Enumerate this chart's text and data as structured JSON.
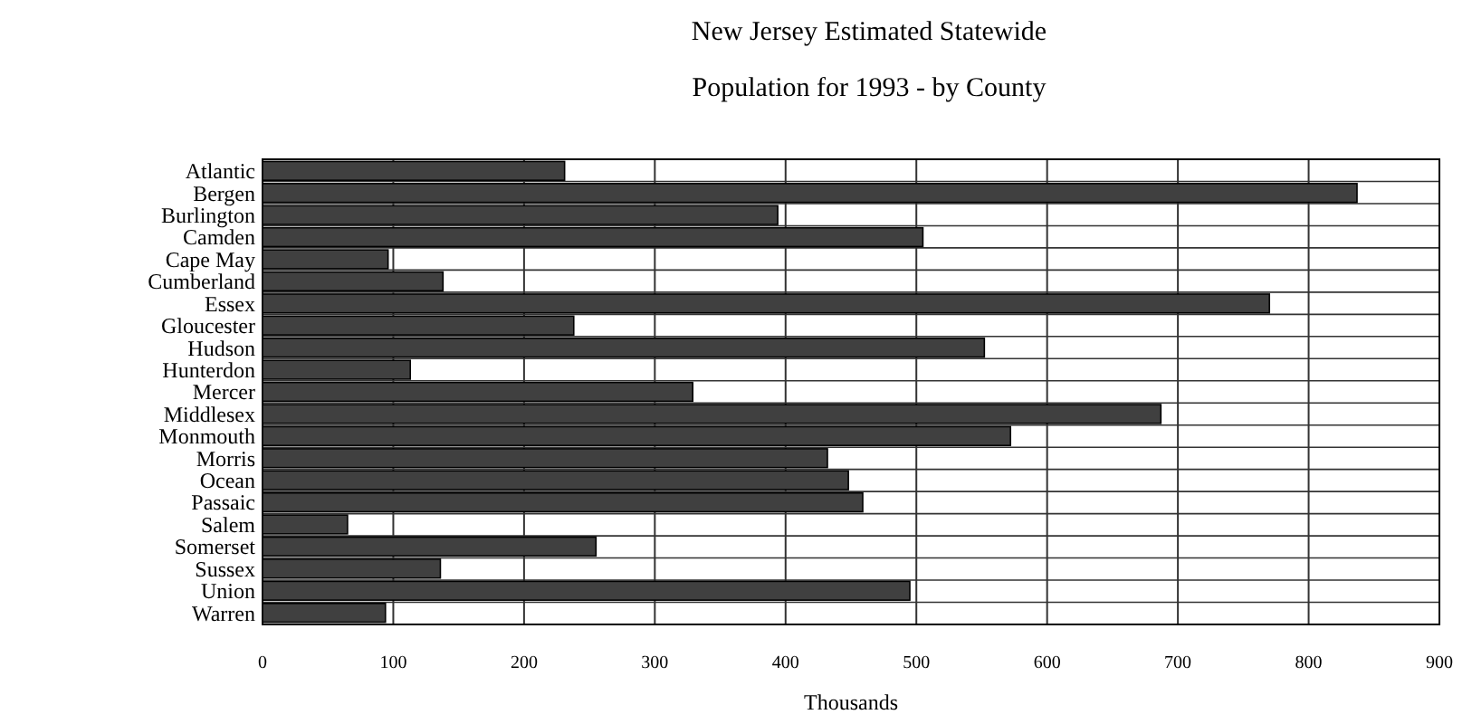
{
  "chart_data": {
    "type": "bar",
    "orientation": "horizontal",
    "title": "New Jersey Estimated Statewide",
    "subtitle": "Population for 1993 - by County",
    "xlabel": "Thousands",
    "categories": [
      "Atlantic",
      "Bergen",
      "Burlington",
      "Camden",
      "Cape May",
      "Cumberland",
      "Essex",
      "Gloucester",
      "Hudson",
      "Hunterdon",
      "Mercer",
      "Middlesex",
      "Monmouth",
      "Morris",
      "Ocean",
      "Passaic",
      "Salem",
      "Somerset",
      "Sussex",
      "Union",
      "Warren"
    ],
    "values": [
      231,
      837,
      394,
      505,
      96,
      138,
      770,
      238,
      552,
      113,
      329,
      687,
      572,
      432,
      448,
      459,
      65,
      255,
      136,
      495,
      94
    ],
    "color": "#404040",
    "xlim": [
      0,
      900
    ],
    "xticks": [
      0,
      100,
      200,
      300,
      400,
      500,
      600,
      700,
      800,
      900
    ],
    "grid": true
  }
}
